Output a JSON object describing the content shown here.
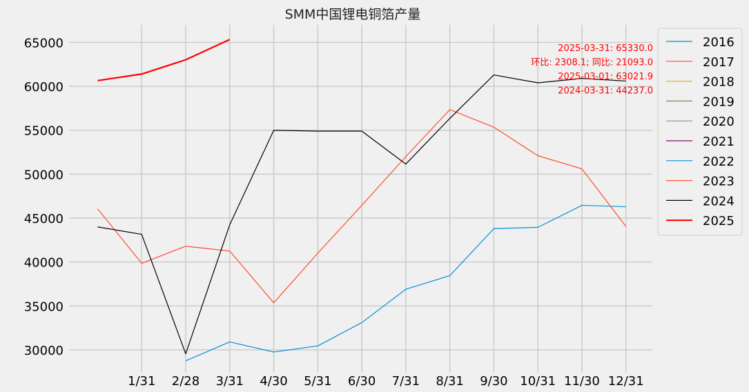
{
  "chart_data": {
    "type": "line",
    "title": "SMM中国锂电铜箔产量",
    "xlabel": "",
    "ylabel": "",
    "x_ticks": [
      "1/31",
      "2/28",
      "3/31",
      "4/30",
      "5/31",
      "6/30",
      "7/31",
      "8/31",
      "9/30",
      "10/31",
      "11/30",
      "12/31"
    ],
    "x_positions": [
      1,
      2,
      3,
      4,
      5,
      6,
      7,
      8,
      9,
      10,
      11,
      12
    ],
    "ylim": [
      27400,
      67000
    ],
    "xlim": [
      -0.65,
      12.6
    ],
    "y_ticks": [
      30000,
      35000,
      40000,
      45000,
      50000,
      55000,
      60000,
      65000
    ],
    "y_tick_labels": [
      "30000",
      "35000",
      "40000",
      "45000",
      "50000",
      "55000",
      "60000",
      "65000"
    ],
    "grid": true,
    "legend_position": "outside-right",
    "series": [
      {
        "name": "2016",
        "color": "#008fd5",
        "x": [],
        "values": []
      },
      {
        "name": "2017",
        "color": "#fc4f30",
        "x": [],
        "values": []
      },
      {
        "name": "2018",
        "color": "#e5ae38",
        "x": [],
        "values": []
      },
      {
        "name": "2019",
        "color": "#6d904f",
        "x": [],
        "values": []
      },
      {
        "name": "2020",
        "color": "#8b8b8b",
        "x": [],
        "values": []
      },
      {
        "name": "2021",
        "color": "#810f7c",
        "x": [],
        "values": []
      },
      {
        "name": "2022",
        "color": "#008fd5",
        "x": [
          2,
          3,
          4,
          5,
          6,
          7,
          8,
          9,
          10,
          11,
          12
        ],
        "values": [
          28750,
          30900,
          29750,
          30450,
          33100,
          36900,
          38450,
          43800,
          43950,
          46450,
          46300
        ]
      },
      {
        "name": "2023",
        "color": "#fc4f30",
        "x": [
          0,
          1,
          2,
          3,
          4,
          5,
          6,
          7,
          8,
          9,
          10,
          11,
          12
        ],
        "values": [
          46050,
          39850,
          41800,
          41250,
          35350,
          41000,
          46450,
          52000,
          57350,
          55350,
          52100,
          50600,
          44050
        ]
      },
      {
        "name": "2024",
        "color": "#000000",
        "x": [
          0,
          1,
          2,
          3,
          4,
          5,
          6,
          7,
          8,
          9,
          10,
          11,
          12
        ],
        "values": [
          44000,
          43150,
          29550,
          44237.0,
          55000,
          54900,
          54900,
          51150,
          56350,
          61300,
          60400,
          60900,
          60600
        ]
      },
      {
        "name": "2025",
        "color": "#ff0000",
        "bold": true,
        "x": [
          0,
          1,
          2,
          3
        ],
        "values": [
          60650,
          61400,
          63021.9,
          65330.0
        ]
      }
    ],
    "annotations": [
      "2025-03-31: 65330.0",
      "环比: 2308.1; 同比: 21093.0",
      "2025-03-01: 63021.9",
      "2024-03-31: 44237.0"
    ],
    "annotation_color": "#ff0000"
  }
}
